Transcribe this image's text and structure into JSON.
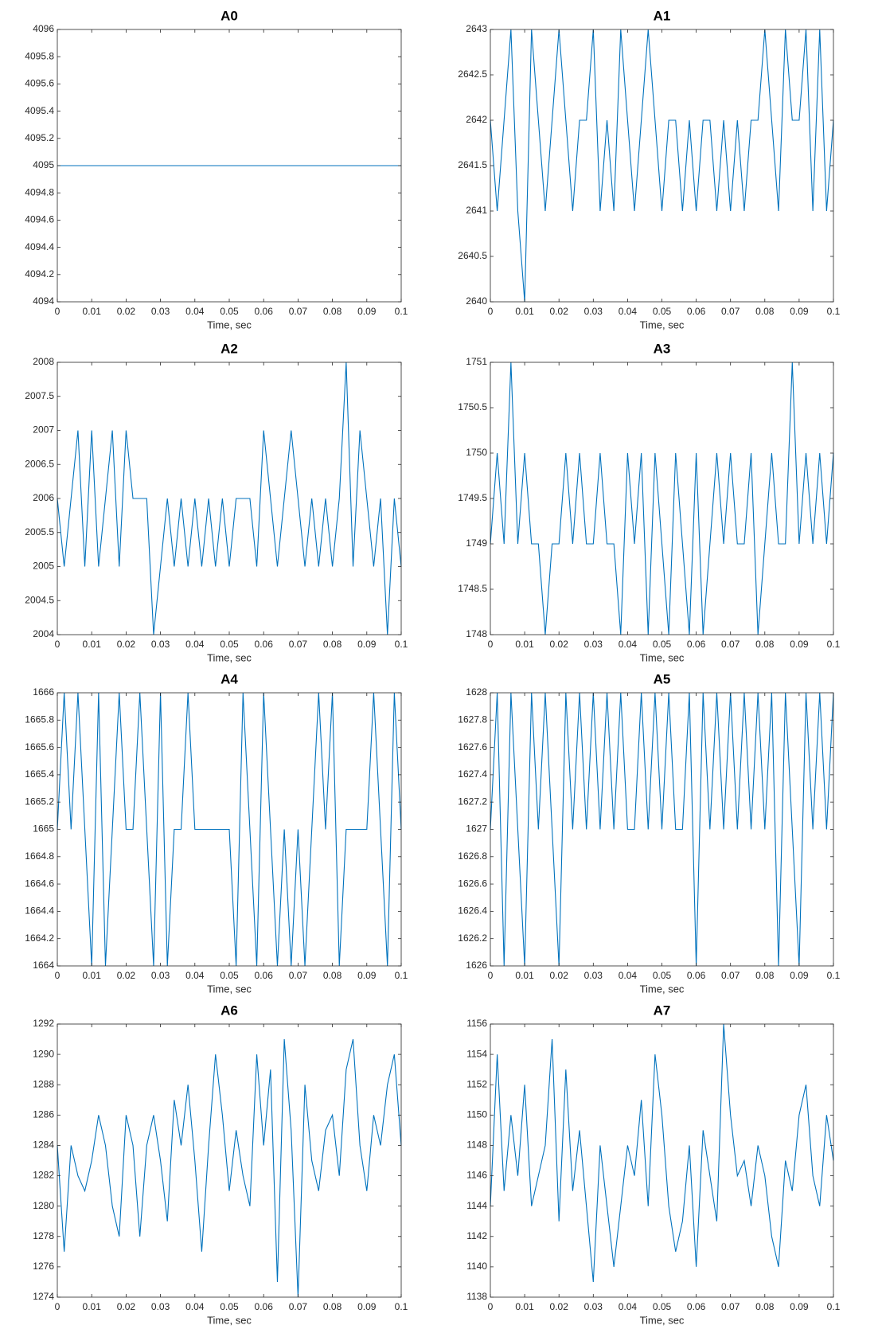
{
  "chart_data": [
    {
      "type": "line",
      "title": "A0",
      "xlabel": "Time, sec",
      "color": "#0072bd",
      "x": [
        0,
        0.002,
        0.004,
        0.006,
        0.008,
        0.01,
        0.012,
        0.014,
        0.016,
        0.018,
        0.02,
        0.022,
        0.024,
        0.026,
        0.028,
        0.03,
        0.032,
        0.034,
        0.036,
        0.038,
        0.04,
        0.042,
        0.044,
        0.046,
        0.048,
        0.05,
        0.052,
        0.054,
        0.056,
        0.058,
        0.06,
        0.062,
        0.064,
        0.066,
        0.068,
        0.07,
        0.072,
        0.074,
        0.076,
        0.078,
        0.08,
        0.082,
        0.084,
        0.086,
        0.088,
        0.09,
        0.092,
        0.094,
        0.096,
        0.098,
        0.1
      ],
      "values": [
        4095,
        4095,
        4095,
        4095,
        4095,
        4095,
        4095,
        4095,
        4095,
        4095,
        4095,
        4095,
        4095,
        4095,
        4095,
        4095,
        4095,
        4095,
        4095,
        4095,
        4095,
        4095,
        4095,
        4095,
        4095,
        4095,
        4095,
        4095,
        4095,
        4095,
        4095,
        4095,
        4095,
        4095,
        4095,
        4095,
        4095,
        4095,
        4095,
        4095,
        4095,
        4095,
        4095,
        4095,
        4095,
        4095,
        4095,
        4095,
        4095,
        4095,
        4095
      ],
      "xlim": [
        0,
        0.1
      ],
      "xticks": [
        0,
        0.01,
        0.02,
        0.03,
        0.04,
        0.05,
        0.06,
        0.07,
        0.08,
        0.09,
        0.1
      ],
      "ylim": [
        4094,
        4096
      ],
      "yticks": [
        4094,
        4094.2,
        4094.4,
        4094.6,
        4094.8,
        4095,
        4095.2,
        4095.4,
        4095.6,
        4095.8,
        4096
      ]
    },
    {
      "type": "line",
      "title": "A1",
      "xlabel": "Time, sec",
      "color": "#0072bd",
      "x": [
        0,
        0.002,
        0.004,
        0.006,
        0.008,
        0.01,
        0.012,
        0.014,
        0.016,
        0.018,
        0.02,
        0.022,
        0.024,
        0.026,
        0.028,
        0.03,
        0.032,
        0.034,
        0.036,
        0.038,
        0.04,
        0.042,
        0.044,
        0.046,
        0.048,
        0.05,
        0.052,
        0.054,
        0.056,
        0.058,
        0.06,
        0.062,
        0.064,
        0.066,
        0.068,
        0.07,
        0.072,
        0.074,
        0.076,
        0.078,
        0.08,
        0.082,
        0.084,
        0.086,
        0.088,
        0.09,
        0.092,
        0.094,
        0.096,
        0.098,
        0.1
      ],
      "values": [
        2642,
        2641,
        2642,
        2643,
        2641,
        2640,
        2643,
        2642,
        2641,
        2642,
        2643,
        2642,
        2641,
        2642,
        2642,
        2643,
        2641,
        2642,
        2641,
        2643,
        2642,
        2641,
        2642,
        2643,
        2642,
        2641,
        2642,
        2642,
        2641,
        2642,
        2641,
        2642,
        2642,
        2641,
        2642,
        2641,
        2642,
        2641,
        2642,
        2642,
        2643,
        2642,
        2641,
        2643,
        2642,
        2642,
        2643,
        2641,
        2643,
        2641,
        2642
      ],
      "xlim": [
        0,
        0.1
      ],
      "xticks": [
        0,
        0.01,
        0.02,
        0.03,
        0.04,
        0.05,
        0.06,
        0.07,
        0.08,
        0.09,
        0.1
      ],
      "ylim": [
        2640,
        2643
      ],
      "yticks": [
        2640,
        2640.5,
        2641,
        2641.5,
        2642,
        2642.5,
        2643
      ]
    },
    {
      "type": "line",
      "title": "A2",
      "xlabel": "Time, sec",
      "color": "#0072bd",
      "x": [
        0,
        0.002,
        0.004,
        0.006,
        0.008,
        0.01,
        0.012,
        0.014,
        0.016,
        0.018,
        0.02,
        0.022,
        0.024,
        0.026,
        0.028,
        0.03,
        0.032,
        0.034,
        0.036,
        0.038,
        0.04,
        0.042,
        0.044,
        0.046,
        0.048,
        0.05,
        0.052,
        0.054,
        0.056,
        0.058,
        0.06,
        0.062,
        0.064,
        0.066,
        0.068,
        0.07,
        0.072,
        0.074,
        0.076,
        0.078,
        0.08,
        0.082,
        0.084,
        0.086,
        0.088,
        0.09,
        0.092,
        0.094,
        0.096,
        0.098,
        0.1
      ],
      "values": [
        2006,
        2005,
        2006,
        2007,
        2005,
        2007,
        2005,
        2006,
        2007,
        2005,
        2007,
        2006,
        2006,
        2006,
        2004,
        2005,
        2006,
        2005,
        2006,
        2005,
        2006,
        2005,
        2006,
        2005,
        2006,
        2005,
        2006,
        2006,
        2006,
        2005,
        2007,
        2006,
        2005,
        2006,
        2007,
        2006,
        2005,
        2006,
        2005,
        2006,
        2005,
        2006,
        2008,
        2005,
        2007,
        2006,
        2005,
        2006,
        2004,
        2006,
        2005
      ],
      "xlim": [
        0,
        0.1
      ],
      "xticks": [
        0,
        0.01,
        0.02,
        0.03,
        0.04,
        0.05,
        0.06,
        0.07,
        0.08,
        0.09,
        0.1
      ],
      "ylim": [
        2004,
        2008
      ],
      "yticks": [
        2004,
        2004.5,
        2005,
        2005.5,
        2006,
        2006.5,
        2007,
        2007.5,
        2008
      ]
    },
    {
      "type": "line",
      "title": "A3",
      "xlabel": "Time, sec",
      "color": "#0072bd",
      "x": [
        0,
        0.002,
        0.004,
        0.006,
        0.008,
        0.01,
        0.012,
        0.014,
        0.016,
        0.018,
        0.02,
        0.022,
        0.024,
        0.026,
        0.028,
        0.03,
        0.032,
        0.034,
        0.036,
        0.038,
        0.04,
        0.042,
        0.044,
        0.046,
        0.048,
        0.05,
        0.052,
        0.054,
        0.056,
        0.058,
        0.06,
        0.062,
        0.064,
        0.066,
        0.068,
        0.07,
        0.072,
        0.074,
        0.076,
        0.078,
        0.08,
        0.082,
        0.084,
        0.086,
        0.088,
        0.09,
        0.092,
        0.094,
        0.096,
        0.098,
        0.1
      ],
      "values": [
        1749,
        1750,
        1749,
        1751,
        1749,
        1750,
        1749,
        1749,
        1748,
        1749,
        1749,
        1750,
        1749,
        1750,
        1749,
        1749,
        1750,
        1749,
        1749,
        1748,
        1750,
        1749,
        1750,
        1748,
        1750,
        1749,
        1748,
        1750,
        1749,
        1748,
        1750,
        1748,
        1749,
        1750,
        1749,
        1750,
        1749,
        1749,
        1750,
        1748,
        1749,
        1750,
        1749,
        1749,
        1751,
        1749,
        1750,
        1749,
        1750,
        1749,
        1750
      ],
      "xlim": [
        0,
        0.1
      ],
      "xticks": [
        0,
        0.01,
        0.02,
        0.03,
        0.04,
        0.05,
        0.06,
        0.07,
        0.08,
        0.09,
        0.1
      ],
      "ylim": [
        1748,
        1751
      ],
      "yticks": [
        1748,
        1748.5,
        1749,
        1749.5,
        1750,
        1750.5,
        1751
      ]
    },
    {
      "type": "line",
      "title": "A4",
      "xlabel": "Time, sec",
      "color": "#0072bd",
      "x": [
        0,
        0.002,
        0.004,
        0.006,
        0.008,
        0.01,
        0.012,
        0.014,
        0.016,
        0.018,
        0.02,
        0.022,
        0.024,
        0.026,
        0.028,
        0.03,
        0.032,
        0.034,
        0.036,
        0.038,
        0.04,
        0.042,
        0.044,
        0.046,
        0.048,
        0.05,
        0.052,
        0.054,
        0.056,
        0.058,
        0.06,
        0.062,
        0.064,
        0.066,
        0.068,
        0.07,
        0.072,
        0.074,
        0.076,
        0.078,
        0.08,
        0.082,
        0.084,
        0.086,
        0.088,
        0.09,
        0.092,
        0.094,
        0.096,
        0.098,
        0.1
      ],
      "values": [
        1665,
        1666,
        1665,
        1666,
        1665,
        1664,
        1666,
        1664,
        1665,
        1666,
        1665,
        1665,
        1666,
        1665,
        1664,
        1666,
        1664,
        1665,
        1665,
        1666,
        1665,
        1665,
        1665,
        1665,
        1665,
        1665,
        1664,
        1666,
        1665,
        1664,
        1666,
        1665,
        1664,
        1665,
        1664,
        1665,
        1664,
        1665,
        1666,
        1665,
        1666,
        1664,
        1665,
        1665,
        1665,
        1665,
        1666,
        1665,
        1664,
        1666,
        1665
      ],
      "xlim": [
        0,
        0.1
      ],
      "xticks": [
        0,
        0.01,
        0.02,
        0.03,
        0.04,
        0.05,
        0.06,
        0.07,
        0.08,
        0.09,
        0.1
      ],
      "ylim": [
        1664,
        1666
      ],
      "yticks": [
        1664,
        1664.2,
        1664.4,
        1664.6,
        1664.8,
        1665,
        1665.2,
        1665.4,
        1665.6,
        1665.8,
        1666
      ]
    },
    {
      "type": "line",
      "title": "A5",
      "xlabel": "Time, sec",
      "color": "#0072bd",
      "x": [
        0,
        0.002,
        0.004,
        0.006,
        0.008,
        0.01,
        0.012,
        0.014,
        0.016,
        0.018,
        0.02,
        0.022,
        0.024,
        0.026,
        0.028,
        0.03,
        0.032,
        0.034,
        0.036,
        0.038,
        0.04,
        0.042,
        0.044,
        0.046,
        0.048,
        0.05,
        0.052,
        0.054,
        0.056,
        0.058,
        0.06,
        0.062,
        0.064,
        0.066,
        0.068,
        0.07,
        0.072,
        0.074,
        0.076,
        0.078,
        0.08,
        0.082,
        0.084,
        0.086,
        0.088,
        0.09,
        0.092,
        0.094,
        0.096,
        0.098,
        0.1
      ],
      "values": [
        1627,
        1628,
        1626,
        1628,
        1627,
        1626,
        1628,
        1627,
        1628,
        1627,
        1626,
        1628,
        1627,
        1628,
        1627,
        1628,
        1627,
        1628,
        1627,
        1628,
        1627,
        1627,
        1628,
        1627,
        1628,
        1627,
        1628,
        1627,
        1627,
        1628,
        1626,
        1628,
        1627,
        1628,
        1627,
        1628,
        1627,
        1628,
        1627,
        1628,
        1627,
        1628,
        1626,
        1628,
        1627,
        1626,
        1628,
        1627,
        1628,
        1627,
        1628
      ],
      "xlim": [
        0,
        0.1
      ],
      "xticks": [
        0,
        0.01,
        0.02,
        0.03,
        0.04,
        0.05,
        0.06,
        0.07,
        0.08,
        0.09,
        0.1
      ],
      "ylim": [
        1626,
        1628
      ],
      "yticks": [
        1626,
        1626.2,
        1626.4,
        1626.6,
        1626.8,
        1627,
        1627.2,
        1627.4,
        1627.6,
        1627.8,
        1628
      ]
    },
    {
      "type": "line",
      "title": "A6",
      "xlabel": "Time, sec",
      "color": "#0072bd",
      "x": [
        0,
        0.002,
        0.004,
        0.006,
        0.008,
        0.01,
        0.012,
        0.014,
        0.016,
        0.018,
        0.02,
        0.022,
        0.024,
        0.026,
        0.028,
        0.03,
        0.032,
        0.034,
        0.036,
        0.038,
        0.04,
        0.042,
        0.044,
        0.046,
        0.048,
        0.05,
        0.052,
        0.054,
        0.056,
        0.058,
        0.06,
        0.062,
        0.064,
        0.066,
        0.068,
        0.07,
        0.072,
        0.074,
        0.076,
        0.078,
        0.08,
        0.082,
        0.084,
        0.086,
        0.088,
        0.09,
        0.092,
        0.094,
        0.096,
        0.098,
        0.1
      ],
      "values": [
        1284,
        1277,
        1284,
        1282,
        1281,
        1283,
        1286,
        1284,
        1280,
        1278,
        1286,
        1284,
        1278,
        1284,
        1286,
        1283,
        1279,
        1287,
        1284,
        1288,
        1283,
        1277,
        1284,
        1290,
        1286,
        1281,
        1285,
        1282,
        1280,
        1290,
        1284,
        1289,
        1275,
        1291,
        1285,
        1274,
        1288,
        1283,
        1281,
        1285,
        1286,
        1282,
        1289,
        1291,
        1284,
        1281,
        1286,
        1284,
        1288,
        1290,
        1284
      ],
      "xlim": [
        0,
        0.1
      ],
      "xticks": [
        0,
        0.01,
        0.02,
        0.03,
        0.04,
        0.05,
        0.06,
        0.07,
        0.08,
        0.09,
        0.1
      ],
      "ylim": [
        1274,
        1292
      ],
      "yticks": [
        1274,
        1276,
        1278,
        1280,
        1282,
        1284,
        1286,
        1288,
        1290,
        1292
      ]
    },
    {
      "type": "line",
      "title": "A7",
      "xlabel": "Time, sec",
      "color": "#0072bd",
      "x": [
        0,
        0.002,
        0.004,
        0.006,
        0.008,
        0.01,
        0.012,
        0.014,
        0.016,
        0.018,
        0.02,
        0.022,
        0.024,
        0.026,
        0.028,
        0.03,
        0.032,
        0.034,
        0.036,
        0.038,
        0.04,
        0.042,
        0.044,
        0.046,
        0.048,
        0.05,
        0.052,
        0.054,
        0.056,
        0.058,
        0.06,
        0.062,
        0.064,
        0.066,
        0.068,
        0.07,
        0.072,
        0.074,
        0.076,
        0.078,
        0.08,
        0.082,
        0.084,
        0.086,
        0.088,
        0.09,
        0.092,
        0.094,
        0.096,
        0.098,
        0.1
      ],
      "values": [
        1144,
        1154,
        1145,
        1150,
        1146,
        1152,
        1144,
        1146,
        1148,
        1155,
        1143,
        1153,
        1145,
        1149,
        1144,
        1139,
        1148,
        1144,
        1140,
        1144,
        1148,
        1146,
        1151,
        1144,
        1154,
        1150,
        1144,
        1141,
        1143,
        1148,
        1140,
        1149,
        1146,
        1143,
        1156,
        1150,
        1146,
        1147,
        1144,
        1148,
        1146,
        1142,
        1140,
        1147,
        1145,
        1150,
        1152,
        1146,
        1144,
        1150,
        1147
      ],
      "xlim": [
        0,
        0.1
      ],
      "xticks": [
        0,
        0.01,
        0.02,
        0.03,
        0.04,
        0.05,
        0.06,
        0.07,
        0.08,
        0.09,
        0.1
      ],
      "ylim": [
        1138,
        1156
      ],
      "yticks": [
        1138,
        1140,
        1142,
        1144,
        1146,
        1148,
        1150,
        1152,
        1154,
        1156
      ]
    }
  ]
}
